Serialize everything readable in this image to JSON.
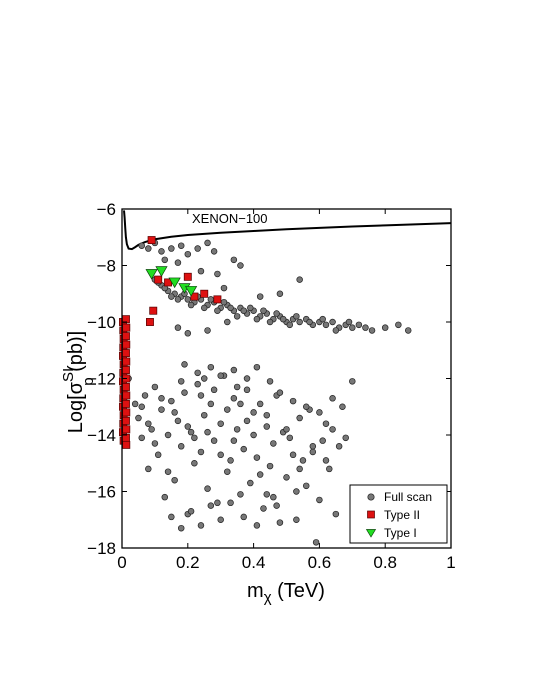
{
  "chart_data": {
    "type": "scatter",
    "xlabel": {
      "main": "m",
      "sub": "χ",
      "rest": " (TeV)"
    },
    "ylabel": {
      "main": "Log[σ",
      "sup": "SI",
      "sub": "p",
      "rest": " (pb)]"
    },
    "xlim": [
      0,
      1
    ],
    "ylim": [
      -18,
      -6
    ],
    "xticks": [
      0,
      0.2,
      0.4,
      0.6,
      0.8,
      1
    ],
    "xtick_labels": [
      "0",
      "0.2",
      "0.4",
      "0.6",
      "0.8",
      "1"
    ],
    "yticks": [
      -6,
      -8,
      -10,
      -12,
      -14,
      -16,
      -18
    ],
    "ytick_labels": [
      "−6",
      "−8",
      "−10",
      "−12",
      "−14",
      "−16",
      "−18"
    ],
    "grid": false,
    "legend_position": "bottom-right",
    "annotation": "XENON−100",
    "limit_curve": {
      "name": "XENON−100",
      "color": "#000000",
      "x": [
        0.006,
        0.008,
        0.01,
        0.012,
        0.015,
        0.02,
        0.03,
        0.04,
        0.05,
        0.07,
        0.1,
        0.15,
        0.2,
        0.3,
        0.4,
        0.5,
        0.6,
        0.7,
        0.8,
        0.9,
        1.0
      ],
      "y": [
        -6.05,
        -6.3,
        -6.7,
        -7.0,
        -7.25,
        -7.4,
        -7.42,
        -7.35,
        -7.27,
        -7.17,
        -7.07,
        -6.98,
        -6.92,
        -6.84,
        -6.78,
        -6.72,
        -6.67,
        -6.62,
        -6.58,
        -6.54,
        -6.5
      ]
    },
    "series": [
      {
        "name": "Full scan",
        "marker": "circle",
        "color": "#777777",
        "points": [
          [
            0.06,
            -7.3
          ],
          [
            0.08,
            -7.4
          ],
          [
            0.1,
            -7.2
          ],
          [
            0.12,
            -7.5
          ],
          [
            0.15,
            -7.4
          ],
          [
            0.18,
            -7.3
          ],
          [
            0.2,
            -7.6
          ],
          [
            0.23,
            -7.4
          ],
          [
            0.26,
            -7.2
          ],
          [
            0.28,
            -7.5
          ],
          [
            0.13,
            -7.8
          ],
          [
            0.17,
            -7.9
          ],
          [
            0.34,
            -7.8
          ],
          [
            0.36,
            -8.0
          ],
          [
            0.31,
            -8.8
          ],
          [
            0.42,
            -9.1
          ],
          [
            0.48,
            -9.0
          ],
          [
            0.54,
            -8.5
          ],
          [
            0.24,
            -8.2
          ],
          [
            0.29,
            -8.3
          ],
          [
            0.1,
            -8.5
          ],
          [
            0.12,
            -8.7
          ],
          [
            0.14,
            -8.9
          ],
          [
            0.16,
            -9.0
          ],
          [
            0.18,
            -9.1
          ],
          [
            0.2,
            -9.2
          ],
          [
            0.22,
            -9.3
          ],
          [
            0.24,
            -9.2
          ],
          [
            0.26,
            -9.4
          ],
          [
            0.28,
            -9.3
          ],
          [
            0.3,
            -9.5
          ],
          [
            0.32,
            -9.4
          ],
          [
            0.34,
            -9.6
          ],
          [
            0.36,
            -9.5
          ],
          [
            0.38,
            -9.7
          ],
          [
            0.4,
            -9.6
          ],
          [
            0.42,
            -9.8
          ],
          [
            0.44,
            -9.7
          ],
          [
            0.46,
            -9.9
          ],
          [
            0.48,
            -9.8
          ],
          [
            0.5,
            -10.0
          ],
          [
            0.52,
            -9.9
          ],
          [
            0.54,
            -10.0
          ],
          [
            0.56,
            -9.9
          ],
          [
            0.58,
            -10.1
          ],
          [
            0.6,
            -10.0
          ],
          [
            0.62,
            -10.1
          ],
          [
            0.64,
            -10.0
          ],
          [
            0.66,
            -10.2
          ],
          [
            0.68,
            -10.1
          ],
          [
            0.7,
            -10.2
          ],
          [
            0.72,
            -10.1
          ],
          [
            0.76,
            -10.3
          ],
          [
            0.8,
            -10.2
          ],
          [
            0.84,
            -10.1
          ],
          [
            0.87,
            -10.3
          ],
          [
            0.11,
            -8.6
          ],
          [
            0.13,
            -8.8
          ],
          [
            0.15,
            -9.1
          ],
          [
            0.17,
            -9.2
          ],
          [
            0.19,
            -9.0
          ],
          [
            0.21,
            -9.4
          ],
          [
            0.23,
            -9.1
          ],
          [
            0.25,
            -9.5
          ],
          [
            0.27,
            -9.2
          ],
          [
            0.29,
            -9.6
          ],
          [
            0.31,
            -9.3
          ],
          [
            0.33,
            -9.5
          ],
          [
            0.35,
            -9.8
          ],
          [
            0.37,
            -9.6
          ],
          [
            0.39,
            -9.5
          ],
          [
            0.41,
            -9.9
          ],
          [
            0.43,
            -9.6
          ],
          [
            0.45,
            -10.0
          ],
          [
            0.47,
            -9.7
          ],
          [
            0.49,
            -9.9
          ],
          [
            0.51,
            -10.1
          ],
          [
            0.53,
            -9.8
          ],
          [
            0.57,
            -10.0
          ],
          [
            0.61,
            -9.9
          ],
          [
            0.65,
            -10.3
          ],
          [
            0.69,
            -10.0
          ],
          [
            0.74,
            -10.2
          ],
          [
            0.17,
            -10.2
          ],
          [
            0.2,
            -10.4
          ],
          [
            0.26,
            -10.3
          ],
          [
            0.32,
            -10.0
          ],
          [
            0.02,
            -12.0
          ],
          [
            0.04,
            -12.9
          ],
          [
            0.05,
            -13.4
          ],
          [
            0.06,
            -14.1
          ],
          [
            0.07,
            -12.6
          ],
          [
            0.08,
            -15.2
          ],
          [
            0.09,
            -13.8
          ],
          [
            0.1,
            -12.3
          ],
          [
            0.11,
            -14.7
          ],
          [
            0.12,
            -13.1
          ],
          [
            0.13,
            -16.2
          ],
          [
            0.14,
            -14.0
          ],
          [
            0.15,
            -12.8
          ],
          [
            0.16,
            -15.6
          ],
          [
            0.17,
            -13.5
          ],
          [
            0.18,
            -14.4
          ],
          [
            0.19,
            -12.5
          ],
          [
            0.2,
            -16.8
          ],
          [
            0.21,
            -13.9
          ],
          [
            0.22,
            -15.0
          ],
          [
            0.23,
            -12.2
          ],
          [
            0.24,
            -14.6
          ],
          [
            0.25,
            -13.3
          ],
          [
            0.26,
            -15.9
          ],
          [
            0.27,
            -12.9
          ],
          [
            0.28,
            -14.2
          ],
          [
            0.29,
            -16.4
          ],
          [
            0.3,
            -13.6
          ],
          [
            0.31,
            -11.9
          ],
          [
            0.32,
            -15.3
          ],
          [
            0.33,
            -14.9
          ],
          [
            0.34,
            -12.7
          ],
          [
            0.35,
            -13.8
          ],
          [
            0.36,
            -16.1
          ],
          [
            0.37,
            -14.5
          ],
          [
            0.38,
            -12.4
          ],
          [
            0.39,
            -15.7
          ],
          [
            0.4,
            -13.2
          ],
          [
            0.41,
            -14.8
          ],
          [
            0.42,
            -12.9
          ],
          [
            0.43,
            -16.6
          ],
          [
            0.44,
            -13.7
          ],
          [
            0.45,
            -15.1
          ],
          [
            0.46,
            -14.3
          ],
          [
            0.47,
            -12.6
          ],
          [
            0.48,
            -17.1
          ],
          [
            0.49,
            -13.9
          ],
          [
            0.5,
            -15.5
          ],
          [
            0.51,
            -14.1
          ],
          [
            0.52,
            -12.8
          ],
          [
            0.53,
            -16.0
          ],
          [
            0.54,
            -13.4
          ],
          [
            0.55,
            -14.9
          ],
          [
            0.56,
            -15.8
          ],
          [
            0.57,
            -13.1
          ],
          [
            0.58,
            -14.6
          ],
          [
            0.59,
            -17.8
          ],
          [
            0.6,
            -16.3
          ],
          [
            0.61,
            -14.2
          ],
          [
            0.62,
            -13.6
          ],
          [
            0.63,
            -15.2
          ],
          [
            0.64,
            -12.7
          ],
          [
            0.66,
            -14.4
          ],
          [
            0.67,
            -13.0
          ],
          [
            0.7,
            -12.1
          ],
          [
            0.06,
            -13.0
          ],
          [
            0.08,
            -13.6
          ],
          [
            0.1,
            -14.3
          ],
          [
            0.12,
            -12.7
          ],
          [
            0.14,
            -15.3
          ],
          [
            0.16,
            -13.2
          ],
          [
            0.18,
            -12.1
          ],
          [
            0.2,
            -13.7
          ],
          [
            0.22,
            -14.1
          ],
          [
            0.24,
            -12.6
          ],
          [
            0.26,
            -13.9
          ],
          [
            0.28,
            -12.4
          ],
          [
            0.3,
            -14.7
          ],
          [
            0.32,
            -13.1
          ],
          [
            0.34,
            -14.2
          ],
          [
            0.36,
            -12.9
          ],
          [
            0.38,
            -13.5
          ],
          [
            0.4,
            -14.0
          ],
          [
            0.42,
            -15.4
          ],
          [
            0.44,
            -13.3
          ],
          [
            0.46,
            -16.2
          ],
          [
            0.48,
            -12.5
          ],
          [
            0.5,
            -13.8
          ],
          [
            0.52,
            -14.7
          ],
          [
            0.54,
            -15.2
          ],
          [
            0.56,
            -13.0
          ],
          [
            0.58,
            -14.4
          ],
          [
            0.6,
            -13.2
          ],
          [
            0.62,
            -14.9
          ],
          [
            0.64,
            -13.8
          ],
          [
            0.65,
            -16.8
          ],
          [
            0.68,
            -14.1
          ],
          [
            0.15,
            -16.9
          ],
          [
            0.18,
            -17.3
          ],
          [
            0.21,
            -16.7
          ],
          [
            0.24,
            -17.2
          ],
          [
            0.27,
            -16.5
          ],
          [
            0.3,
            -17.0
          ],
          [
            0.33,
            -16.4
          ],
          [
            0.37,
            -16.9
          ],
          [
            0.41,
            -17.2
          ],
          [
            0.44,
            -16.1
          ],
          [
            0.47,
            -16.5
          ],
          [
            0.53,
            -17.0
          ],
          [
            0.19,
            -11.5
          ],
          [
            0.23,
            -11.8
          ],
          [
            0.27,
            -11.6
          ],
          [
            0.3,
            -11.9
          ],
          [
            0.34,
            -11.7
          ],
          [
            0.38,
            -12.0
          ],
          [
            0.41,
            -11.6
          ],
          [
            0.45,
            -12.1
          ],
          [
            0.35,
            -12.3
          ],
          [
            0.25,
            -12.0
          ]
        ]
      },
      {
        "name": "Type II",
        "marker": "square",
        "color": "#dd1111",
        "points": [
          [
            0.09,
            -7.1
          ],
          [
            0.095,
            -9.6
          ],
          [
            0.085,
            -10.0
          ],
          [
            0.2,
            -8.4
          ],
          [
            0.25,
            -9.0
          ],
          [
            0.29,
            -9.2
          ],
          [
            0.11,
            -8.5
          ],
          [
            0.14,
            -8.6
          ],
          [
            0.22,
            -9.1
          ],
          [
            0.003,
            -10.0
          ],
          [
            0.004,
            -10.3
          ],
          [
            0.005,
            -10.6
          ],
          [
            0.004,
            -10.9
          ],
          [
            0.003,
            -11.2
          ],
          [
            0.005,
            -11.5
          ],
          [
            0.004,
            -11.8
          ],
          [
            0.003,
            -12.1
          ],
          [
            0.005,
            -12.4
          ],
          [
            0.004,
            -12.7
          ],
          [
            0.003,
            -13.0
          ],
          [
            0.005,
            -13.3
          ],
          [
            0.004,
            -13.6
          ],
          [
            0.003,
            -13.9
          ],
          [
            0.005,
            -14.2
          ],
          [
            0.012,
            -9.9
          ],
          [
            0.013,
            -10.2
          ],
          [
            0.012,
            -10.5
          ],
          [
            0.013,
            -10.8
          ],
          [
            0.012,
            -11.1
          ],
          [
            0.013,
            -11.4
          ],
          [
            0.012,
            -11.7
          ],
          [
            0.013,
            -12.0
          ],
          [
            0.012,
            -12.3
          ],
          [
            0.013,
            -12.6
          ],
          [
            0.012,
            -12.9
          ],
          [
            0.013,
            -13.2
          ],
          [
            0.012,
            -13.5
          ],
          [
            0.013,
            -13.8
          ],
          [
            0.012,
            -14.1
          ],
          [
            0.013,
            -14.35
          ]
        ]
      },
      {
        "name": "Type I",
        "marker": "triangle-down",
        "color": "#22dd22",
        "points": [
          [
            0.09,
            -8.3
          ],
          [
            0.12,
            -8.2
          ],
          [
            0.16,
            -8.6
          ],
          [
            0.19,
            -8.8
          ],
          [
            0.21,
            -8.9
          ]
        ]
      }
    ]
  }
}
